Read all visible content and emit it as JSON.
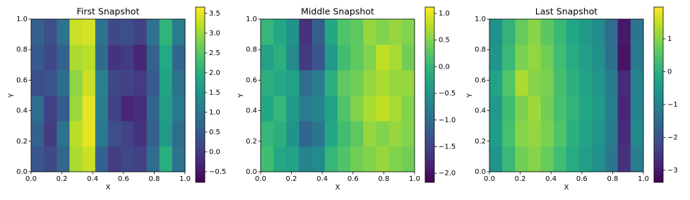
{
  "chart_data": [
    {
      "type": "heatmap",
      "title": "First Snapshot",
      "xlabel": "X",
      "ylabel": "Y",
      "colormap": "viridis",
      "xlim": [
        0,
        1
      ],
      "ylim": [
        0,
        1
      ],
      "xticks": [
        {
          "value": 0,
          "label": "0.0"
        },
        {
          "value": 0.2,
          "label": "0.2"
        },
        {
          "value": 0.4,
          "label": "0.4"
        },
        {
          "value": 0.6,
          "label": "0.6"
        },
        {
          "value": 0.8,
          "label": "0.8"
        },
        {
          "value": 1,
          "label": "1.0"
        }
      ],
      "yticks": [
        {
          "value": 0,
          "label": "0.0"
        },
        {
          "value": 0.2,
          "label": "0.2"
        },
        {
          "value": 0.4,
          "label": "0.4"
        },
        {
          "value": 0.6,
          "label": "0.6"
        },
        {
          "value": 0.8,
          "label": "0.8"
        },
        {
          "value": 1,
          "label": "1.0"
        }
      ],
      "clim": [
        -0.77,
        3.66
      ],
      "cticks": [
        {
          "value": -0.5,
          "label": "−0.5"
        },
        {
          "value": 0,
          "label": "0.0"
        },
        0.5,
        {
          "value": 1,
          "label": "1.0"
        },
        1.5,
        {
          "value": 2,
          "label": "2.0"
        },
        2.5,
        {
          "value": 3,
          "label": "3.0"
        },
        3.5
      ],
      "z": [
        [
          0.4,
          0.2,
          0.7,
          3.1,
          3.3,
          0.6,
          0.0,
          0.2,
          0.1,
          0.8,
          2.0,
          0.9
        ],
        [
          0.6,
          0.0,
          0.9,
          3.2,
          3.5,
          1.0,
          0.3,
          0.1,
          -0.1,
          0.6,
          1.6,
          0.8
        ],
        [
          0.8,
          0.1,
          0.5,
          3.0,
          3.5,
          1.1,
          0.1,
          -0.3,
          -0.2,
          0.7,
          1.7,
          1.0
        ],
        [
          0.3,
          0.4,
          0.8,
          2.9,
          3.3,
          1.2,
          0.2,
          0.1,
          0.0,
          0.5,
          1.8,
          0.9
        ],
        [
          0.5,
          0.2,
          0.6,
          3.1,
          3.2,
          0.8,
          -0.1,
          0.0,
          -0.3,
          0.6,
          1.9,
          0.7
        ],
        [
          0.6,
          0.3,
          0.9,
          3.3,
          3.4,
          0.9,
          0.2,
          0.3,
          0.1,
          0.9,
          2.1,
          1.1
        ]
      ]
    },
    {
      "type": "heatmap",
      "title": "Middle Snapshot",
      "xlabel": "X",
      "ylabel": "Y",
      "colormap": "viridis",
      "xlim": [
        0,
        1
      ],
      "ylim": [
        0,
        1
      ],
      "xticks": [
        {
          "value": 0,
          "label": "0.0"
        },
        {
          "value": 0.2,
          "label": "0.2"
        },
        {
          "value": 0.4,
          "label": "0.4"
        },
        {
          "value": 0.6,
          "label": "0.6"
        },
        {
          "value": 0.8,
          "label": "0.8"
        },
        {
          "value": 1,
          "label": "1.0"
        }
      ],
      "yticks": [
        {
          "value": 0,
          "label": "0.0"
        },
        {
          "value": 0.2,
          "label": "0.2"
        },
        {
          "value": 0.4,
          "label": "0.4"
        },
        {
          "value": 0.6,
          "label": "0.6"
        },
        {
          "value": 0.8,
          "label": "0.8"
        },
        {
          "value": 1,
          "label": "1.0"
        }
      ],
      "clim": [
        -2.17,
        1.12
      ],
      "cticks": [
        {
          "value": -2,
          "label": "−2.0"
        },
        {
          "value": -1.5,
          "label": "−1.5"
        },
        {
          "value": -1,
          "label": "−1.0"
        },
        {
          "value": -0.5,
          "label": "−0.5"
        },
        {
          "value": 0,
          "label": "0.0"
        },
        0.5,
        {
          "value": 1,
          "label": "1.0"
        }
      ],
      "z": [
        [
          0.1,
          -0.2,
          -0.3,
          -0.7,
          -0.6,
          0.0,
          0.2,
          0.4,
          0.5,
          0.6,
          0.5,
          0.4
        ],
        [
          0.0,
          -0.1,
          -0.5,
          -1.1,
          -0.9,
          -0.2,
          0.1,
          0.3,
          0.6,
          0.5,
          0.6,
          0.5
        ],
        [
          -0.2,
          0.0,
          -0.4,
          -0.8,
          -0.7,
          -0.3,
          0.2,
          0.5,
          0.7,
          0.8,
          0.7,
          0.5
        ],
        [
          -0.1,
          -0.2,
          -0.3,
          -1.0,
          -0.8,
          -0.1,
          0.3,
          0.4,
          0.6,
          0.7,
          0.6,
          0.6
        ],
        [
          -0.3,
          -0.1,
          -0.6,
          -1.6,
          -1.3,
          -0.4,
          0.1,
          0.3,
          0.5,
          0.8,
          0.7,
          0.4
        ],
        [
          0.0,
          -0.2,
          -0.5,
          -1.7,
          -1.2,
          -0.2,
          0.2,
          0.3,
          0.6,
          0.5,
          0.6,
          0.5
        ]
      ]
    },
    {
      "type": "heatmap",
      "title": "Last Snapshot",
      "xlabel": "X",
      "ylabel": "Y",
      "colormap": "viridis",
      "xlim": [
        0,
        1
      ],
      "ylim": [
        0,
        1
      ],
      "xticks": [
        {
          "value": 0,
          "label": "0.0"
        },
        {
          "value": 0.2,
          "label": "0.2"
        },
        {
          "value": 0.4,
          "label": "0.4"
        },
        {
          "value": 0.6,
          "label": "0.6"
        },
        {
          "value": 0.8,
          "label": "0.8"
        },
        {
          "value": 1,
          "label": "1.0"
        }
      ],
      "yticks": [
        {
          "value": 0,
          "label": "0.0"
        },
        {
          "value": 0.2,
          "label": "0.2"
        },
        {
          "value": 0.4,
          "label": "0.4"
        },
        {
          "value": 0.6,
          "label": "0.6"
        },
        {
          "value": 0.8,
          "label": "0.8"
        },
        {
          "value": 1,
          "label": "1.0"
        }
      ],
      "clim": [
        -3.37,
        1.97
      ],
      "cticks": [
        {
          "value": -3,
          "label": "−3"
        },
        {
          "value": -2,
          "label": "−2"
        },
        {
          "value": -1,
          "label": "−1"
        },
        0,
        1
      ],
      "z": [
        [
          -0.6,
          0.2,
          0.8,
          1.0,
          0.7,
          0.3,
          -0.1,
          -0.4,
          -0.7,
          -1.3,
          -2.6,
          -1.1
        ],
        [
          -0.4,
          0.4,
          1.0,
          1.1,
          0.9,
          0.5,
          0.0,
          -0.3,
          -0.6,
          -1.2,
          -2.7,
          -0.9
        ],
        [
          -0.5,
          0.3,
          0.9,
          1.2,
          0.8,
          0.4,
          0.1,
          -0.2,
          -0.5,
          -1.1,
          -2.8,
          -1.0
        ],
        [
          -0.3,
          0.5,
          1.3,
          1.0,
          0.9,
          0.4,
          0.0,
          -0.3,
          -0.6,
          -1.2,
          -2.7,
          -1.0
        ],
        [
          -0.6,
          0.2,
          0.9,
          1.1,
          0.8,
          0.3,
          -0.1,
          -0.4,
          -0.7,
          -1.4,
          -3.1,
          -1.2
        ],
        [
          -0.7,
          0.1,
          0.7,
          1.0,
          0.6,
          0.2,
          -0.2,
          -0.5,
          -0.8,
          -1.5,
          -3.0,
          -1.3
        ]
      ]
    }
  ]
}
